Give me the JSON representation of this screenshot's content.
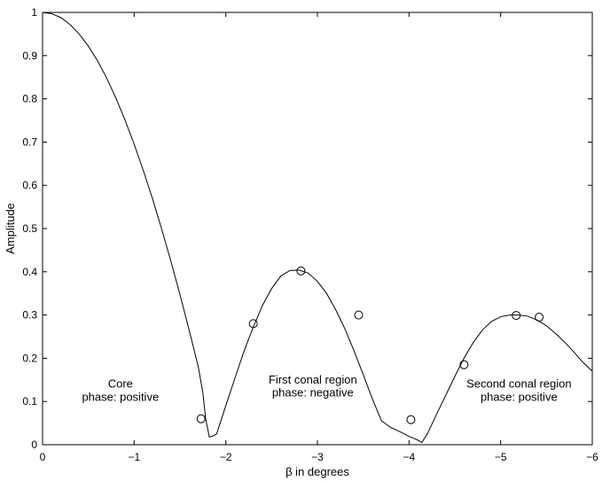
{
  "chart_data": {
    "type": "line",
    "title": "",
    "xlabel": "β in degrees",
    "ylabel": "Amplitude",
    "xlim": [
      0,
      -6
    ],
    "ylim": [
      0,
      1
    ],
    "x_ticks": [
      "0",
      "−1",
      "−2",
      "−3",
      "−4",
      "−5",
      "−6"
    ],
    "y_ticks": [
      "0",
      "0.1",
      "0.2",
      "0.3",
      "0.4",
      "0.5",
      "0.6",
      "0.7",
      "0.8",
      "0.9",
      "1"
    ],
    "grid": false,
    "series": [
      {
        "style": "solid line",
        "x": [
          0,
          -0.1,
          -0.2,
          -0.3,
          -0.4,
          -0.5,
          -0.6,
          -0.7,
          -0.8,
          -0.9,
          -1.0,
          -1.1,
          -1.2,
          -1.3,
          -1.4,
          -1.5,
          -1.6,
          -1.7,
          -1.75,
          -1.78,
          -1.82,
          -1.86,
          -1.9,
          -2.0,
          -2.1,
          -2.2,
          -2.3,
          -2.4,
          -2.5,
          -2.6,
          -2.7,
          -2.8,
          -2.9,
          -3.0,
          -3.1,
          -3.2,
          -3.3,
          -3.4,
          -3.5,
          -3.6,
          -3.7,
          -3.8,
          -3.9,
          -4.0,
          -4.05,
          -4.1,
          -4.14,
          -4.2,
          -4.3,
          -4.4,
          -4.5,
          -4.6,
          -4.7,
          -4.8,
          -4.9,
          -5.0,
          -5.1,
          -5.2,
          -5.3,
          -5.4,
          -5.5,
          -5.6,
          -5.7,
          -5.8,
          -5.9,
          -6.0
        ],
        "y": [
          1.0,
          0.997,
          0.988,
          0.972,
          0.95,
          0.922,
          0.888,
          0.848,
          0.802,
          0.751,
          0.695,
          0.634,
          0.569,
          0.499,
          0.425,
          0.347,
          0.265,
          0.18,
          0.12,
          0.06,
          0.018,
          0.02,
          0.025,
          0.09,
          0.154,
          0.217,
          0.272,
          0.322,
          0.361,
          0.39,
          0.403,
          0.404,
          0.397,
          0.378,
          0.35,
          0.312,
          0.268,
          0.217,
          0.162,
          0.106,
          0.055,
          0.04,
          0.03,
          0.019,
          0.015,
          0.01,
          0.005,
          0.025,
          0.07,
          0.114,
          0.158,
          0.2,
          0.236,
          0.265,
          0.285,
          0.296,
          0.3,
          0.3,
          0.297,
          0.288,
          0.275,
          0.257,
          0.237,
          0.214,
          0.19,
          0.17
        ]
      },
      {
        "style": "open circles",
        "x": [
          -1.73,
          -2.3,
          -2.82,
          -3.45,
          -4.02,
          -4.6,
          -5.17,
          -5.42
        ],
        "y": [
          0.06,
          0.28,
          0.402,
          0.3,
          0.058,
          0.185,
          0.299,
          0.295
        ]
      }
    ],
    "annotations": [
      {
        "lines": [
          "Core",
          "phase: positive"
        ],
        "x": -0.85,
        "y": [
          0.14,
          0.11
        ]
      },
      {
        "lines": [
          "First conal region",
          "phase: negative"
        ],
        "x": -2.95,
        "y": [
          0.15,
          0.12
        ]
      },
      {
        "lines": [
          "Second conal region",
          "phase: positive"
        ],
        "x": -5.2,
        "y": [
          0.14,
          0.11
        ]
      }
    ]
  }
}
